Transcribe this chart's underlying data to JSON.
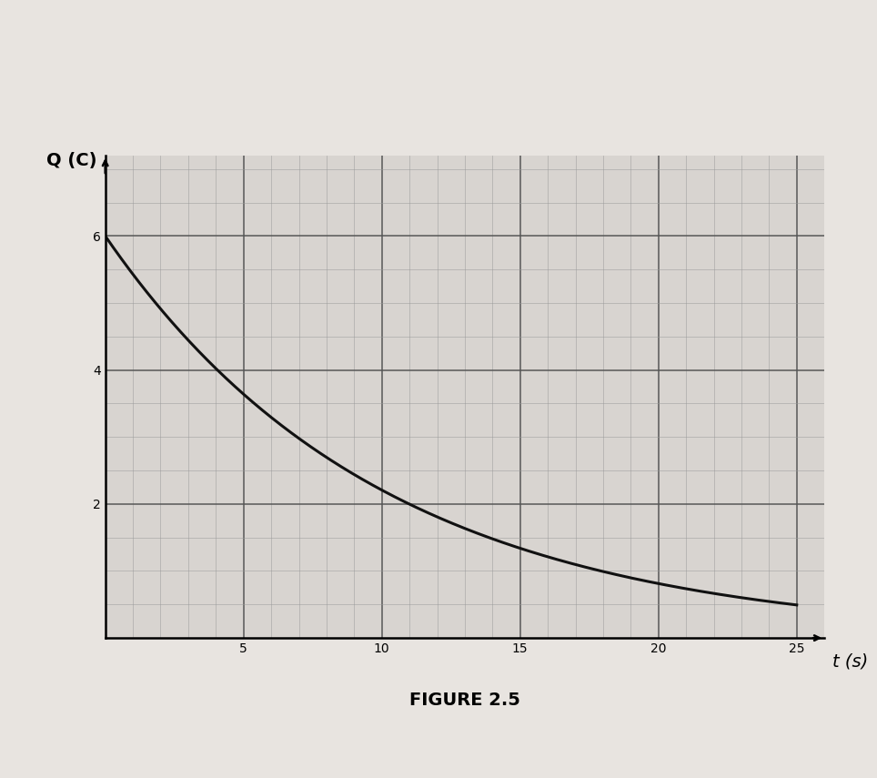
{
  "title": "FIGURE 2.5",
  "ylabel": "Q (C)",
  "xlabel": "t (s)",
  "Q0": 6.0,
  "tau": 10.0,
  "t_start": 0,
  "t_end": 25,
  "xlim": [
    0,
    26
  ],
  "ylim": [
    0,
    7.2
  ],
  "xticks": [
    5,
    10,
    15,
    20,
    25
  ],
  "yticks": [
    2,
    4,
    6
  ],
  "major_grid_color": "#555555",
  "minor_grid_color": "#999999",
  "curve_color": "#111111",
  "curve_linewidth": 2.2,
  "bg_color": "#d8d4d0",
  "fig_bg_color": "#e8e4e0",
  "grid_major_x_count": 5,
  "grid_major_y_count": 3,
  "minor_per_major": 4,
  "ylabel_fontsize": 14,
  "xlabel_fontsize": 14,
  "tick_fontsize": 13,
  "title_fontsize": 14
}
